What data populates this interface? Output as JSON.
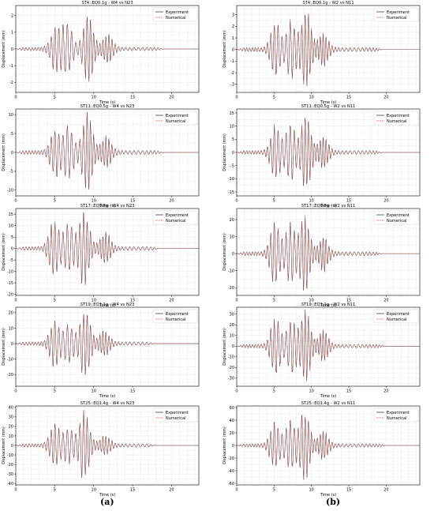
{
  "labels": {
    "left": "(a)",
    "right": "(b)"
  },
  "legend": {
    "experiment": "Experiment",
    "numerical": "Numerical"
  },
  "colors": {
    "experiment": "#404040",
    "numerical": "#e05050",
    "grid": "#e4e4e4",
    "axis": "#000000"
  },
  "chart_data": [
    {
      "type": "line",
      "title": "ST4::EQ0.1g - W4 vs N23",
      "xlabel": "Time (s)",
      "ylabel": "Displacement (mm)",
      "xlim": [
        0,
        23.5
      ],
      "ylim": [
        -2.6,
        2.6
      ],
      "xticks": [
        0,
        5,
        10,
        15,
        20
      ],
      "yticks": [
        -2,
        -1,
        0,
        1,
        2
      ],
      "grid": true,
      "legend_position": "top-right",
      "envelope": {
        "bursts": [
          [
            5.1,
            1.3
          ],
          [
            6.6,
            1.6
          ],
          [
            9.3,
            2.1
          ],
          [
            11.8,
            0.9
          ]
        ],
        "peak": 2.1,
        "end": 18
      },
      "series": [
        {
          "name": "Experiment"
        },
        {
          "name": "Numerical"
        }
      ]
    },
    {
      "type": "line",
      "title": "ST4::EQ0.1g - W2 vs N11",
      "xlabel": "Time (s)",
      "ylabel": "Displacement (mm)",
      "xlim": [
        0,
        24.5
      ],
      "ylim": [
        -3.7,
        3.8
      ],
      "xticks": [
        0,
        5,
        10,
        15,
        20
      ],
      "yticks": [
        -3,
        -2,
        -1,
        0,
        1,
        2,
        3
      ],
      "grid": true,
      "legend_position": "top-right",
      "envelope": {
        "bursts": [
          [
            5.2,
            2.4
          ],
          [
            7.3,
            2.5
          ],
          [
            9.3,
            3.6
          ],
          [
            11.6,
            1.4
          ]
        ],
        "peak": 3.6,
        "end": 18.5
      },
      "series": [
        {
          "name": "Experiment"
        },
        {
          "name": "Numerical"
        }
      ]
    },
    {
      "type": "line",
      "title": "ST11::EQ0.5g - W4 vs N23",
      "xlabel": "Time (s)",
      "ylabel": "Displacement (mm)",
      "xlim": [
        0,
        23.5
      ],
      "ylim": [
        -11.5,
        11.5
      ],
      "xticks": [
        0,
        5,
        10,
        15,
        20
      ],
      "yticks": [
        -10,
        -5,
        0,
        5,
        10
      ],
      "grid": true,
      "legend_position": "top-right",
      "envelope": {
        "bursts": [
          [
            5.1,
            6.5
          ],
          [
            6.8,
            7.0
          ],
          [
            9.2,
            11.0
          ],
          [
            11.6,
            4.0
          ]
        ],
        "peak": 11.0,
        "end": 18
      },
      "series": [
        {
          "name": "Experiment"
        },
        {
          "name": "Numerical"
        }
      ]
    },
    {
      "type": "line",
      "title": "ST11::EQ0.5g - W2 vs N11",
      "xlabel": "Time (s)",
      "ylabel": "Displacement (mm)",
      "xlim": [
        0,
        24.5
      ],
      "ylim": [
        -16.5,
        16.5
      ],
      "xticks": [
        0,
        5,
        10,
        15,
        20
      ],
      "yticks": [
        -15,
        -10,
        -5,
        0,
        5,
        10,
        15
      ],
      "grid": true,
      "legend_position": "top-right",
      "envelope": {
        "bursts": [
          [
            5.2,
            10.5
          ],
          [
            7.2,
            11.0
          ],
          [
            9.3,
            15.0
          ],
          [
            11.6,
            6.0
          ]
        ],
        "peak": 15.0,
        "end": 18.5
      },
      "series": [
        {
          "name": "Experiment"
        },
        {
          "name": "Numerical"
        }
      ]
    },
    {
      "type": "line",
      "title": "ST17::EQ0.8g - W4 vs N23",
      "xlabel": "Time (s)",
      "ylabel": "Displacement (mm)",
      "xlim": [
        0,
        23.5
      ],
      "ylim": [
        -20.5,
        17.5
      ],
      "xticks": [
        0,
        5,
        10,
        15,
        20
      ],
      "yticks": [
        -20,
        -15,
        -10,
        -5,
        0,
        5,
        10,
        15
      ],
      "grid": true,
      "legend_position": "top-right",
      "envelope": {
        "bursts": [
          [
            4.9,
            12.0
          ],
          [
            6.8,
            11.0
          ],
          [
            8.8,
            17.0
          ],
          [
            11.5,
            7.0
          ]
        ],
        "peak": 17.0,
        "end": 17.5
      },
      "series": [
        {
          "name": "Experiment"
        },
        {
          "name": "Numerical"
        }
      ]
    },
    {
      "type": "line",
      "title": "ST17::EQ0.8g - W2 vs N11",
      "xlabel": "Time (s)",
      "ylabel": "Displacement (mm)",
      "xlim": [
        0,
        24.5
      ],
      "ylim": [
        -24.5,
        26.5
      ],
      "xticks": [
        0,
        5,
        10,
        15,
        20
      ],
      "yticks": [
        -20,
        -10,
        0,
        10,
        20
      ],
      "grid": true,
      "legend_position": "top-right",
      "envelope": {
        "bursts": [
          [
            5.1,
            19.0
          ],
          [
            7.2,
            18.0
          ],
          [
            9.1,
            24.0
          ],
          [
            11.6,
            10.0
          ]
        ],
        "peak": 24.0,
        "end": 18.5
      },
      "series": [
        {
          "name": "Experiment"
        },
        {
          "name": "Numerical"
        }
      ]
    },
    {
      "type": "line",
      "title": "ST19::EQ1.1g - W4 vs N23",
      "xlabel": "Time (s)",
      "ylabel": "Displacement (mm)",
      "xlim": [
        0,
        23.5
      ],
      "ylim": [
        -27.5,
        23.5
      ],
      "xticks": [
        0,
        5,
        10,
        15
      ],
      "yticks": [
        -20,
        -10,
        0,
        10,
        20
      ],
      "grid": true,
      "legend_position": "top-right",
      "envelope": {
        "bursts": [
          [
            5.0,
            15.0
          ],
          [
            6.8,
            13.0
          ],
          [
            8.9,
            23.0
          ],
          [
            11.4,
            8.0
          ]
        ],
        "peak": 23.0,
        "end": 17
      },
      "series": [
        {
          "name": "Experiment"
        },
        {
          "name": "Numerical"
        }
      ]
    },
    {
      "type": "line",
      "title": "ST19::EQ1.1g - W2 vs N11",
      "xlabel": "Time (s)",
      "ylabel": "Displacement (mm)",
      "xlim": [
        0,
        24.5
      ],
      "ylim": [
        -37.5,
        36.5
      ],
      "xticks": [
        0,
        5,
        10,
        15,
        20
      ],
      "yticks": [
        -30,
        -20,
        -10,
        0,
        10,
        20,
        30
      ],
      "grid": true,
      "legend_position": "top-right",
      "envelope": {
        "bursts": [
          [
            5.2,
            28.0
          ],
          [
            7.3,
            26.0
          ],
          [
            9.2,
            35.0
          ],
          [
            11.6,
            14.0
          ]
        ],
        "peak": 35.0,
        "end": 19
      },
      "series": [
        {
          "name": "Experiment"
        },
        {
          "name": "Numerical"
        }
      ]
    },
    {
      "type": "line",
      "title": "ST25::EQ1.4g - W4 vs N23",
      "xlabel": "Time (s)",
      "ylabel": "Displacement (mm)",
      "xlim": [
        0,
        23.5
      ],
      "ylim": [
        -41.5,
        41.5
      ],
      "xticks": [
        0,
        5,
        10,
        15,
        20
      ],
      "yticks": [
        -40,
        -30,
        -20,
        -10,
        0,
        10,
        20,
        30,
        40
      ],
      "grid": true,
      "legend_position": "top-right",
      "envelope": {
        "bursts": [
          [
            5.0,
            22.0
          ],
          [
            6.8,
            18.0
          ],
          [
            8.8,
            38.0
          ],
          [
            11.5,
            10.0
          ]
        ],
        "peak": 38.0,
        "end": 17
      },
      "series": [
        {
          "name": "Experiment"
        },
        {
          "name": "Numerical"
        }
      ]
    },
    {
      "type": "line",
      "title": "ST25::EQ1.4g - W2 vs N11",
      "xlabel": "Time (s)",
      "ylabel": "Displacement (mm)",
      "xlim": [
        0,
        24.5
      ],
      "ylim": [
        -62.5,
        62.5
      ],
      "xticks": [
        0,
        5,
        10,
        15,
        20
      ],
      "yticks": [
        -60,
        -40,
        -20,
        0,
        20,
        40,
        60
      ],
      "grid": true,
      "legend_position": "top-right",
      "envelope": {
        "bursts": [
          [
            5.1,
            38.0
          ],
          [
            7.2,
            40.0
          ],
          [
            9.1,
            58.0
          ],
          [
            11.6,
            22.0
          ]
        ],
        "peak": 58.0,
        "end": 19
      },
      "series": [
        {
          "name": "Experiment"
        },
        {
          "name": "Numerical"
        }
      ]
    }
  ]
}
